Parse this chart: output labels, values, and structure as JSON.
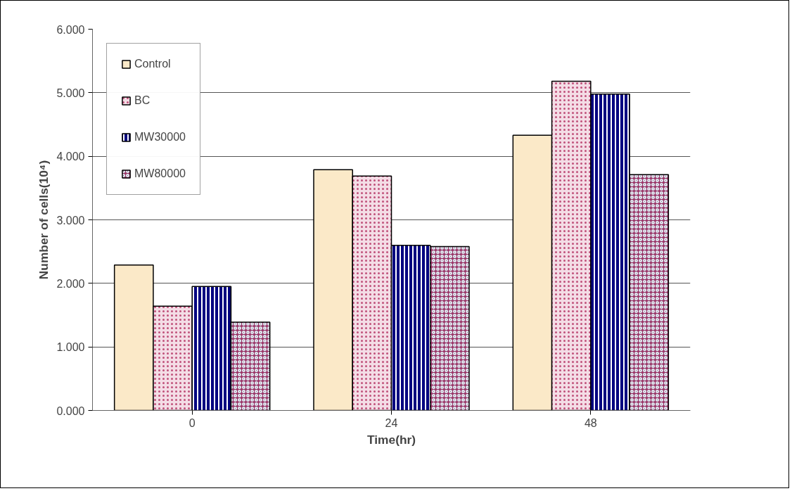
{
  "chart_data": {
    "type": "bar",
    "xlabel": "Time(hr)",
    "ylabel": "Number of cells(10⁴)",
    "categories": [
      "0",
      "24",
      "48"
    ],
    "series": [
      {
        "name": "Control",
        "color": "#fbe9c8",
        "values": [
          2.29,
          3.79,
          4.33
        ]
      },
      {
        "name": "BC",
        "color": "#f4dde6",
        "values": [
          1.64,
          3.69,
          5.18
        ]
      },
      {
        "name": "MW30000",
        "color": "#000080",
        "values": [
          1.95,
          2.6,
          4.98
        ]
      },
      {
        "name": "MW80000",
        "color": "#993366",
        "values": [
          1.39,
          2.58,
          3.71
        ]
      }
    ],
    "ylim": [
      0,
      6
    ],
    "yticks": [
      {
        "value": 0,
        "label": "0.000"
      },
      {
        "value": 1,
        "label": "1.000"
      },
      {
        "value": 2,
        "label": "2.000"
      },
      {
        "value": 3,
        "label": "3.000"
      },
      {
        "value": 4,
        "label": "4.000"
      },
      {
        "value": 5,
        "label": "5.000"
      },
      {
        "value": 6,
        "label": "6.000"
      }
    ],
    "grid": "y",
    "legend": "top left"
  }
}
